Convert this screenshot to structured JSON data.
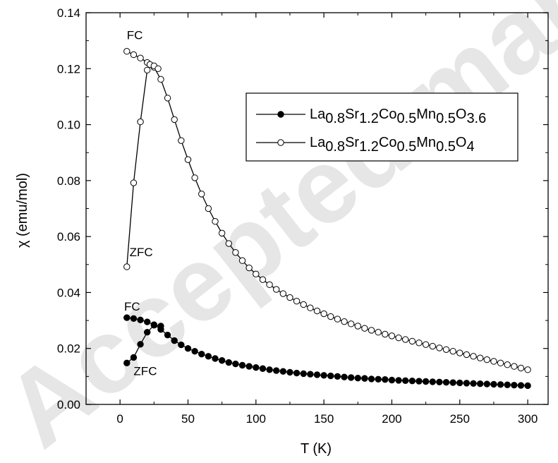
{
  "watermark": "Accepted manuscript",
  "chart_data": {
    "type": "line",
    "title": "",
    "xlabel": "T (K)",
    "ylabel": "χ (emu/mol)",
    "xlim": [
      -25,
      315
    ],
    "ylim": [
      0.0,
      0.14
    ],
    "xticks": [
      0,
      50,
      100,
      150,
      200,
      250,
      300
    ],
    "yticks": [
      0.0,
      0.02,
      0.04,
      0.06,
      0.08,
      0.1,
      0.12,
      0.14
    ],
    "xtick_labels": [
      "0",
      "50",
      "100",
      "150",
      "200",
      "250",
      "300"
    ],
    "ytick_labels": [
      "0.00",
      "0.02",
      "0.04",
      "0.06",
      "0.08",
      "0.10",
      "0.12",
      "0.14"
    ],
    "grid": false,
    "legend": {
      "placement": "top-right",
      "entries": [
        {
          "base": "La",
          "parts": [
            [
              "0.8",
              "sub"
            ],
            [
              "Sr",
              ""
            ],
            [
              "1.2",
              "sub"
            ],
            [
              "Co",
              ""
            ],
            [
              "0.5",
              "sub"
            ],
            [
              "Mn",
              ""
            ],
            [
              "0.5",
              "sub"
            ],
            [
              "O",
              ""
            ],
            [
              "3.6",
              "sub"
            ]
          ],
          "marker": "filled-circle"
        },
        {
          "base": "La",
          "parts": [
            [
              "0.8",
              "sub"
            ],
            [
              "Sr",
              ""
            ],
            [
              "1.2",
              "sub"
            ],
            [
              "Co",
              ""
            ],
            [
              "0.5",
              "sub"
            ],
            [
              "Mn",
              ""
            ],
            [
              "0.5",
              "sub"
            ],
            [
              "O",
              ""
            ],
            [
              "4",
              "sub"
            ]
          ],
          "marker": "open-circle"
        }
      ]
    },
    "annotations": [
      {
        "text": "FC",
        "x": 5,
        "y": 0.1305
      },
      {
        "text": "ZFC",
        "x": 7,
        "y": 0.053
      },
      {
        "text": "FC",
        "x": 3,
        "y": 0.0335
      },
      {
        "text": "ZFC",
        "x": 10,
        "y": 0.0105
      }
    ],
    "series": [
      {
        "name": "La0.8Sr1.2Co0.5Mn0.5O3.6 FC",
        "marker": "filled",
        "x": [
          5,
          10,
          15,
          20,
          25,
          30,
          35,
          40,
          45,
          50,
          55,
          60,
          65,
          70,
          75,
          80,
          85,
          90,
          95,
          100,
          105,
          110,
          115,
          120,
          125,
          130,
          135,
          140,
          145,
          150,
          155,
          160,
          165,
          170,
          175,
          180,
          185,
          190,
          195,
          200,
          205,
          210,
          215,
          220,
          225,
          230,
          235,
          240,
          245,
          250,
          255,
          260,
          265,
          270,
          275,
          280,
          285,
          290,
          295,
          300
        ],
        "y": [
          0.031,
          0.0307,
          0.0302,
          0.0295,
          0.0285,
          0.0268,
          0.0248,
          0.0228,
          0.0213,
          0.02,
          0.019,
          0.018,
          0.0172,
          0.0164,
          0.0157,
          0.015,
          0.0145,
          0.014,
          0.0136,
          0.0132,
          0.0128,
          0.0124,
          0.0121,
          0.0118,
          0.0115,
          0.0112,
          0.011,
          0.0108,
          0.0106,
          0.0104,
          0.0102,
          0.01,
          0.0098,
          0.0096,
          0.0094,
          0.0093,
          0.0091,
          0.009,
          0.0089,
          0.0087,
          0.0086,
          0.0085,
          0.0084,
          0.0083,
          0.0082,
          0.0081,
          0.008,
          0.0079,
          0.0078,
          0.0077,
          0.0076,
          0.0075,
          0.0074,
          0.0073,
          0.0072,
          0.0071,
          0.007,
          0.0069,
          0.0068,
          0.0067
        ]
      },
      {
        "name": "La0.8Sr1.2Co0.5Mn0.5O3.6 ZFC",
        "marker": "filled",
        "x": [
          5,
          10,
          15,
          20,
          25,
          30
        ],
        "y": [
          0.0148,
          0.0168,
          0.0215,
          0.0258,
          0.0283,
          0.028
        ]
      },
      {
        "name": "La0.8Sr1.2Co0.5Mn0.5O4 FC",
        "marker": "open",
        "x": [
          5,
          10,
          15,
          20,
          25,
          30,
          35,
          40,
          45,
          50,
          55,
          60,
          65,
          70,
          75,
          80,
          85,
          90,
          95,
          100,
          105,
          110,
          115,
          120,
          125,
          130,
          135,
          140,
          145,
          150,
          155,
          160,
          165,
          170,
          175,
          180,
          185,
          190,
          195,
          200,
          205,
          210,
          215,
          220,
          225,
          230,
          235,
          240,
          245,
          250,
          255,
          260,
          265,
          270,
          275,
          280,
          285,
          290,
          295,
          300
        ],
        "y": [
          0.1262,
          0.125,
          0.1238,
          0.1222,
          0.1205,
          0.1162,
          0.1095,
          0.1018,
          0.0943,
          0.0875,
          0.081,
          0.0752,
          0.07,
          0.0654,
          0.0612,
          0.0575,
          0.0543,
          0.0514,
          0.0488,
          0.0466,
          0.0446,
          0.0428,
          0.0411,
          0.0396,
          0.0382,
          0.0369,
          0.0357,
          0.0345,
          0.0334,
          0.0324,
          0.0314,
          0.0305,
          0.0296,
          0.0288,
          0.028,
          0.0272,
          0.0265,
          0.0258,
          0.0251,
          0.0245,
          0.0238,
          0.0232,
          0.0226,
          0.022,
          0.0214,
          0.0208,
          0.0202,
          0.0196,
          0.019,
          0.0184,
          0.0178,
          0.0172,
          0.0166,
          0.016,
          0.0154,
          0.0148,
          0.0142,
          0.0136,
          0.013,
          0.0124
        ]
      },
      {
        "name": "La0.8Sr1.2Co0.5Mn0.5O4 ZFC",
        "marker": "open",
        "x": [
          5,
          10,
          15,
          20,
          22,
          25,
          28
        ],
        "y": [
          0.0492,
          0.0792,
          0.101,
          0.1195,
          0.1215,
          0.121,
          0.12
        ]
      }
    ]
  }
}
